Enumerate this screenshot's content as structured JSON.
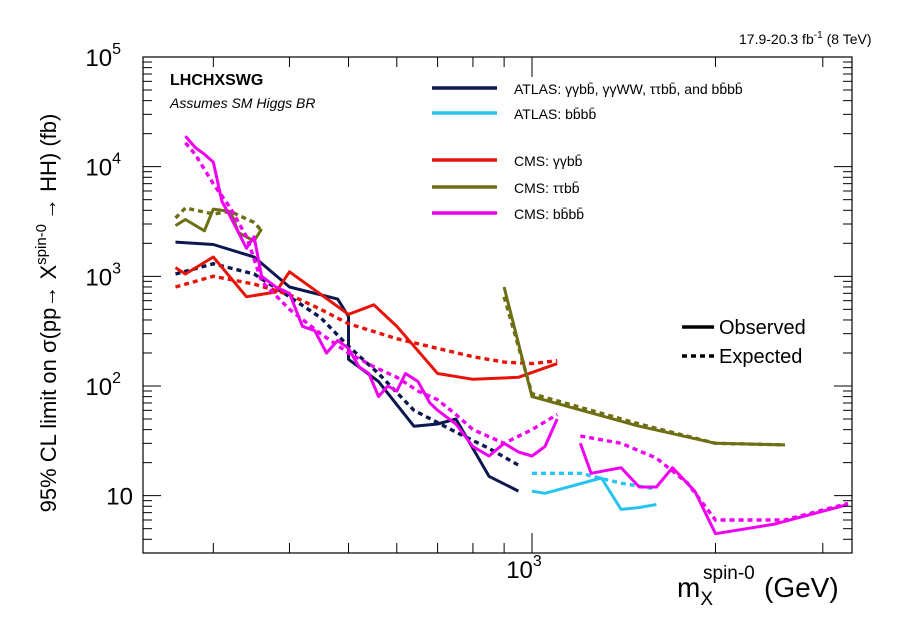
{
  "chart_data": {
    "type": "line",
    "title": "LHCHXSWG",
    "subtitle": "Assumes SM Higgs BR",
    "lumi_text": "17.9-20.3 fb",
    "lumi_sup": "-1",
    "lumi_energy": "(8 TeV)",
    "ylabel_main": "95% CL limit on σ(pp→ X",
    "ylabel_sup": "spin-0",
    "ylabel_tail": "→ HH) (fb)",
    "xlabel_main": "m",
    "xlabel_sub": "X",
    "xlabel_sup": "spin-0",
    "xlabel_unit": "(GeV)",
    "xscale": "log",
    "yscale": "log",
    "xlim": [
      230,
      3350
    ],
    "ylim": [
      3,
      100000
    ],
    "x_tick_labels": [
      {
        "base": "10",
        "exp": "3",
        "value": 1000
      }
    ],
    "y_tick_labels": [
      {
        "base": "10",
        "exp": "5",
        "value": 100000
      },
      {
        "base": "10",
        "exp": "4",
        "value": 10000
      },
      {
        "base": "10",
        "exp": "3",
        "value": 1000
      },
      {
        "base": "10",
        "exp": "2",
        "value": 100
      },
      {
        "base": "10",
        "exp": "",
        "value": 10
      }
    ],
    "legend_style": [
      {
        "label": "Observed",
        "style": "solid"
      },
      {
        "label": "Expected",
        "style": "dashed"
      }
    ],
    "series": [
      {
        "name": "ATLAS: γγbb̄, γγWW, ττbb̄, and bb̄bb̄",
        "color": "#0b1850",
        "observed": [
          [
            260,
            2050
          ],
          [
            300,
            1950
          ],
          [
            350,
            1500
          ],
          [
            400,
            800
          ],
          [
            480,
            620
          ],
          [
            500,
            430
          ],
          [
            500,
            175
          ],
          [
            560,
            110
          ],
          [
            640,
            43
          ],
          [
            700,
            45
          ],
          [
            750,
            50
          ],
          [
            850,
            15
          ],
          [
            950,
            11
          ]
        ],
        "expected": [
          [
            260,
            1050
          ],
          [
            300,
            1300
          ],
          [
            350,
            1050
          ],
          [
            400,
            650
          ],
          [
            450,
            420
          ],
          [
            500,
            230
          ],
          [
            560,
            130
          ],
          [
            640,
            60
          ],
          [
            750,
            38
          ],
          [
            850,
            27
          ],
          [
            950,
            19
          ]
        ]
      },
      {
        "name": "ATLAS: bb̄bb̄",
        "color": "#28c4f0",
        "observed": [
          [
            1000,
            11
          ],
          [
            1050,
            10.5
          ],
          [
            1300,
            14.5
          ],
          [
            1400,
            7.5
          ],
          [
            1500,
            7.8
          ],
          [
            1600,
            8.3
          ]
        ],
        "expected": [
          [
            1000,
            16
          ],
          [
            1200,
            16
          ],
          [
            1400,
            13
          ],
          [
            1600,
            11.5
          ]
        ]
      },
      {
        "name": "CMS: γγbb̄",
        "color": "#e8140a",
        "observed": [
          [
            260,
            1200
          ],
          [
            270,
            1050
          ],
          [
            300,
            1500
          ],
          [
            340,
            650
          ],
          [
            380,
            720
          ],
          [
            400,
            1100
          ],
          [
            500,
            450
          ],
          [
            550,
            550
          ],
          [
            600,
            350
          ],
          [
            700,
            130
          ],
          [
            800,
            115
          ],
          [
            950,
            120
          ],
          [
            1100,
            160
          ]
        ],
        "expected": [
          [
            260,
            800
          ],
          [
            300,
            1000
          ],
          [
            350,
            850
          ],
          [
            400,
            680
          ],
          [
            450,
            500
          ],
          [
            500,
            370
          ],
          [
            600,
            270
          ],
          [
            700,
            220
          ],
          [
            800,
            185
          ],
          [
            900,
            165
          ],
          [
            1000,
            160
          ],
          [
            1100,
            170
          ]
        ]
      },
      {
        "name": "CMS: ττbb̄",
        "color": "#6e6e14",
        "observed": [
          [
            260,
            2900
          ],
          [
            270,
            3300
          ],
          [
            290,
            2600
          ],
          [
            300,
            4100
          ],
          [
            320,
            3900
          ],
          [
            330,
            2500
          ],
          [
            350,
            2100
          ],
          [
            360,
            2700
          ]
        ],
        "expected": [
          [
            260,
            3400
          ],
          [
            270,
            4200
          ],
          [
            300,
            3700
          ],
          [
            320,
            3900
          ],
          [
            350,
            3100
          ],
          [
            360,
            2600
          ]
        ]
      },
      {
        "name": "CMS: ττbb̄ (high mass)",
        "color": "#6e6e14",
        "observed": [
          [
            900,
            800
          ],
          [
            1000,
            80
          ],
          [
            1500,
            43
          ],
          [
            2000,
            30
          ],
          [
            2600,
            29
          ]
        ],
        "expected": [
          [
            900,
            650
          ],
          [
            1000,
            85
          ],
          [
            1500,
            45
          ],
          [
            2000,
            30
          ],
          [
            2600,
            29
          ]
        ]
      },
      {
        "name": "CMS: bb̄bb̄",
        "color": "#f000f0",
        "observed": [
          [
            270,
            19000
          ],
          [
            280,
            15000
          ],
          [
            290,
            13000
          ],
          [
            300,
            11000
          ],
          [
            310,
            4800
          ],
          [
            320,
            3500
          ],
          [
            340,
            1800
          ],
          [
            350,
            2300
          ],
          [
            360,
            1000
          ],
          [
            380,
            800
          ],
          [
            400,
            700
          ],
          [
            420,
            350
          ],
          [
            440,
            320
          ],
          [
            460,
            200
          ],
          [
            480,
            260
          ],
          [
            500,
            220
          ],
          [
            520,
            150
          ],
          [
            540,
            130
          ],
          [
            560,
            80
          ],
          [
            580,
            100
          ],
          [
            600,
            90
          ],
          [
            620,
            130
          ],
          [
            650,
            110
          ],
          [
            680,
            70
          ],
          [
            700,
            60
          ],
          [
            750,
            45
          ],
          [
            800,
            28
          ],
          [
            850,
            23
          ],
          [
            900,
            30
          ],
          [
            950,
            25
          ],
          [
            1000,
            23
          ],
          [
            1050,
            28
          ],
          [
            1100,
            50
          ]
        ],
        "expected": [
          [
            270,
            16500
          ],
          [
            280,
            13000
          ],
          [
            300,
            7000
          ],
          [
            320,
            4200
          ],
          [
            340,
            2300
          ],
          [
            360,
            900
          ],
          [
            400,
            500
          ],
          [
            450,
            300
          ],
          [
            500,
            200
          ],
          [
            550,
            150
          ],
          [
            600,
            120
          ],
          [
            650,
            90
          ],
          [
            700,
            75
          ],
          [
            750,
            55
          ],
          [
            800,
            40
          ],
          [
            900,
            30
          ],
          [
            1000,
            40
          ],
          [
            1100,
            55
          ]
        ]
      },
      {
        "name": "CMS: bb̄bb̄ (high mass)",
        "color": "#f000f0",
        "observed": [
          [
            1200,
            30
          ],
          [
            1250,
            16
          ],
          [
            1400,
            18
          ],
          [
            1500,
            12
          ],
          [
            1600,
            12
          ],
          [
            1700,
            18
          ],
          [
            1850,
            11
          ],
          [
            2000,
            4.5
          ],
          [
            2500,
            5.5
          ],
          [
            3300,
            8.3
          ]
        ],
        "expected": [
          [
            1200,
            35
          ],
          [
            1400,
            30
          ],
          [
            1600,
            22
          ],
          [
            1800,
            13
          ],
          [
            2000,
            6
          ],
          [
            2600,
            6
          ],
          [
            3300,
            8.5
          ]
        ]
      }
    ],
    "legend": [
      {
        "label_pre": "ATLAS: γγ",
        "label": "bb̄, γγWW, ττbb̄, and bb̄bb̄",
        "color": "#0b1850"
      },
      {
        "label_pre": "ATLAS: ",
        "label": "bb̄bb̄",
        "color": "#28c4f0"
      },
      {
        "label_pre": "CMS: γγ",
        "label": "bb̄",
        "color": "#e8140a"
      },
      {
        "label_pre": "CMS: ττ",
        "label": "bb̄",
        "color": "#6e6e14"
      },
      {
        "label_pre": "CMS: ",
        "label": "bb̄bb̄",
        "color": "#f000f0"
      }
    ],
    "legend_placement": "top-right",
    "grid": false
  }
}
